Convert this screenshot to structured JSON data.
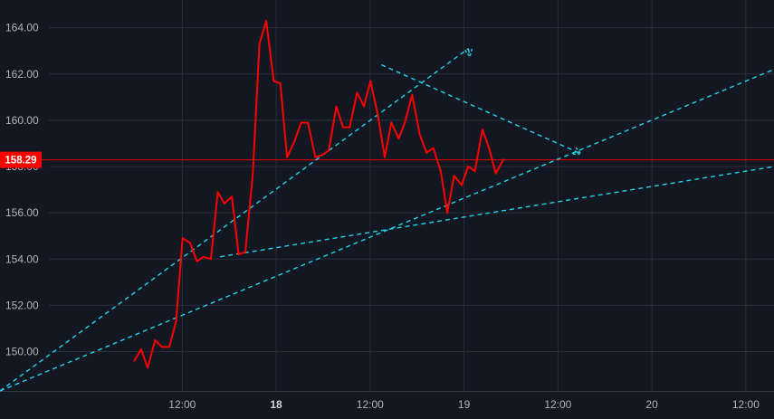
{
  "colors": {
    "background": "#131722",
    "grid": "#2a2e39",
    "axis_text": "#b2b5be",
    "series": "#ff0000",
    "drawing": "#22d3e6",
    "price_label_bg": "#ff0000",
    "price_label_text": "#ffffff"
  },
  "chart_data": {
    "type": "line",
    "title": "",
    "xlabel": "",
    "ylabel": "",
    "grid": true,
    "ylim": [
      148.3,
      165.2
    ],
    "xlim": [
      -0.47,
      3.65
    ],
    "x_unit": "days since 17 00:00 on the time axis",
    "y_axis_side": "left",
    "yticks": [
      {
        "value": 150,
        "label": "150.00"
      },
      {
        "value": 152,
        "label": "152.00"
      },
      {
        "value": 154,
        "label": "154.00"
      },
      {
        "value": 156,
        "label": "156.00"
      },
      {
        "value": 158,
        "label": "158.00"
      },
      {
        "value": 160,
        "label": "160.00"
      },
      {
        "value": 162,
        "label": "162.00"
      },
      {
        "value": 164,
        "label": "164.00"
      }
    ],
    "xticks": [
      {
        "value": 0.5,
        "label": "12:00",
        "bold": false
      },
      {
        "value": 1.0,
        "label": "18",
        "bold": true
      },
      {
        "value": 1.5,
        "label": "12:00",
        "bold": false
      },
      {
        "value": 2.0,
        "label": "19",
        "bold": false
      },
      {
        "value": 2.5,
        "label": "12:00",
        "bold": false
      },
      {
        "value": 3.0,
        "label": "20",
        "bold": false
      },
      {
        "value": 3.5,
        "label": "12:00",
        "bold": false
      }
    ],
    "last_price": {
      "value": 158.29,
      "label": "158.29"
    },
    "series": [
      {
        "name": "",
        "points": [
          [
            0.245,
            149.6
          ],
          [
            0.281,
            150.1
          ],
          [
            0.316,
            149.3
          ],
          [
            0.356,
            150.5
          ],
          [
            0.392,
            150.2
          ],
          [
            0.431,
            150.2
          ],
          [
            0.467,
            151.3
          ],
          [
            0.502,
            154.9
          ],
          [
            0.542,
            154.7
          ],
          [
            0.578,
            153.9
          ],
          [
            0.613,
            154.1
          ],
          [
            0.653,
            154.0
          ],
          [
            0.689,
            156.9
          ],
          [
            0.724,
            156.4
          ],
          [
            0.764,
            156.7
          ],
          [
            0.8,
            154.2
          ],
          [
            0.836,
            154.3
          ],
          [
            0.876,
            157.7
          ],
          [
            0.911,
            163.3
          ],
          [
            0.947,
            164.3
          ],
          [
            0.987,
            161.7
          ],
          [
            1.022,
            161.6
          ],
          [
            1.058,
            158.4
          ],
          [
            1.098,
            159.1
          ],
          [
            1.133,
            159.9
          ],
          [
            1.169,
            159.9
          ],
          [
            1.209,
            158.4
          ],
          [
            1.244,
            158.5
          ],
          [
            1.28,
            158.7
          ],
          [
            1.32,
            160.6
          ],
          [
            1.356,
            159.7
          ],
          [
            1.391,
            159.7
          ],
          [
            1.431,
            161.2
          ],
          [
            1.467,
            160.6
          ],
          [
            1.502,
            161.7
          ],
          [
            1.542,
            160.2
          ],
          [
            1.578,
            158.4
          ],
          [
            1.613,
            159.9
          ],
          [
            1.653,
            159.2
          ],
          [
            1.689,
            160.0
          ],
          [
            1.724,
            161.1
          ],
          [
            1.764,
            159.4
          ],
          [
            1.8,
            158.6
          ],
          [
            1.836,
            158.8
          ],
          [
            1.876,
            157.8
          ],
          [
            1.911,
            156.0
          ],
          [
            1.947,
            157.6
          ],
          [
            1.987,
            157.2
          ],
          [
            2.022,
            158.0
          ],
          [
            2.058,
            157.8
          ],
          [
            2.098,
            159.6
          ],
          [
            2.133,
            158.8
          ],
          [
            2.169,
            157.7
          ],
          [
            2.209,
            158.3
          ]
        ]
      }
    ],
    "drawings": [
      {
        "kind": "trend",
        "from": [
          -0.47,
          148.3
        ],
        "to": [
          2.023,
          163.1
        ]
      },
      {
        "kind": "trend",
        "from": [
          -0.47,
          148.3
        ],
        "to": [
          3.65,
          162.2
        ]
      },
      {
        "kind": "trend",
        "from": [
          0.702,
          154.1
        ],
        "to": [
          3.65,
          158.0
        ]
      },
      {
        "kind": "arrow",
        "from": [
          1.56,
          162.4
        ],
        "to": [
          2.623,
          158.55
        ]
      },
      {
        "kind": "arrow",
        "from": [
          2.023,
          163.1
        ],
        "to": [
          2.031,
          162.75
        ]
      }
    ]
  }
}
